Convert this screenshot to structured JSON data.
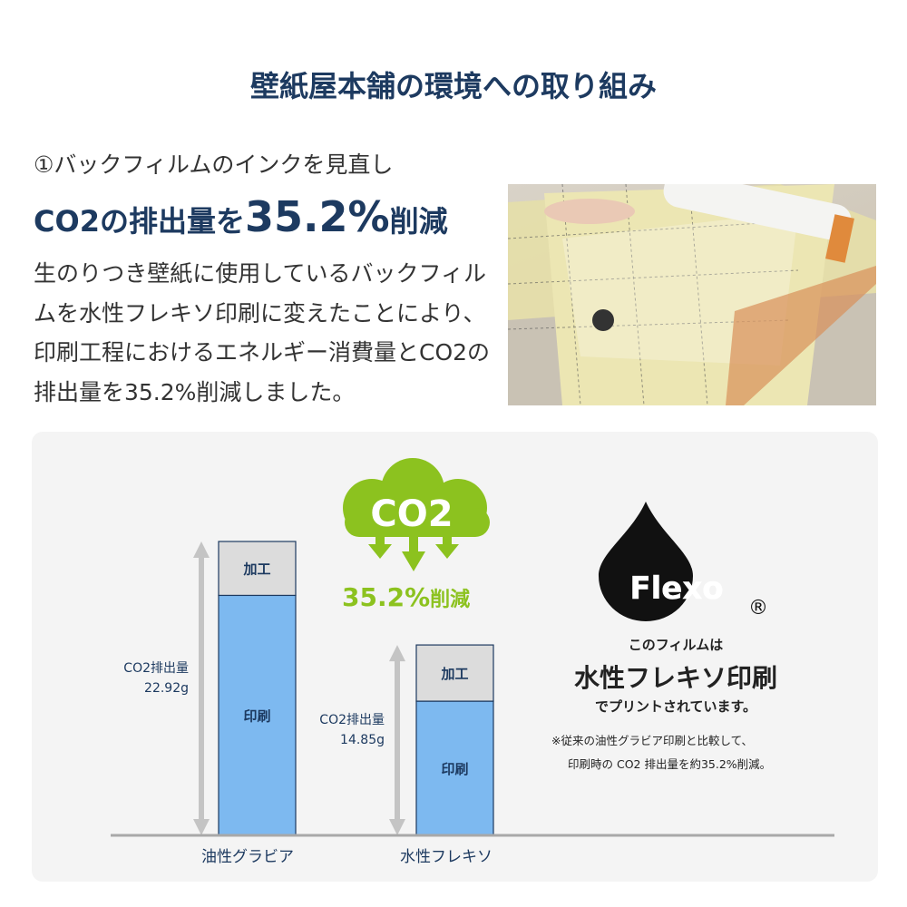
{
  "header": {
    "title": "壁紙屋本舗の環境への取り組み"
  },
  "intro": {
    "subtitle": "①バックフィルムのインクを見直し",
    "headline_prefix": "CO2の排出量を",
    "headline_value": "35.2%",
    "headline_suffix": "削減",
    "body": "生のりつき壁紙に使用しているバックフィルムを水性フレキソ印刷に変えたことにより、印刷工程におけるエネルギー消費量とCO2の排出量を35.2%削減しました。"
  },
  "badge": {
    "cloud_label": "CO2",
    "reduction": "35.2%",
    "reduction_suffix": "削減",
    "color": "#8cc21f"
  },
  "flexo": {
    "logo": "Flexo",
    "registered": "®",
    "line1": "このフィルムは",
    "line2": "水性フレキソ印刷",
    "line3": "でプリントされています。",
    "note1": "※従来の油性グラビア印刷と比較して、",
    "note2": "印刷時の CO2 排出量を約35.2%削減。"
  },
  "chart_data": {
    "type": "bar",
    "stacked": true,
    "categories": [
      "油性グラビア",
      "水性フレキソ"
    ],
    "series": [
      {
        "name": "印刷",
        "values": [
          18.7,
          10.5
        ],
        "color": "#7db9f0"
      },
      {
        "name": "加工",
        "values": [
          4.2,
          4.4
        ],
        "color": "#dcdcdc"
      }
    ],
    "totals": [
      22.92,
      14.85
    ],
    "total_labels": [
      {
        "label": "CO2排出量",
        "value": "22.92g"
      },
      {
        "label": "CO2排出量",
        "value": "14.85g"
      }
    ],
    "unit": "g",
    "ylim": [
      0,
      22.92
    ],
    "grid": false
  }
}
